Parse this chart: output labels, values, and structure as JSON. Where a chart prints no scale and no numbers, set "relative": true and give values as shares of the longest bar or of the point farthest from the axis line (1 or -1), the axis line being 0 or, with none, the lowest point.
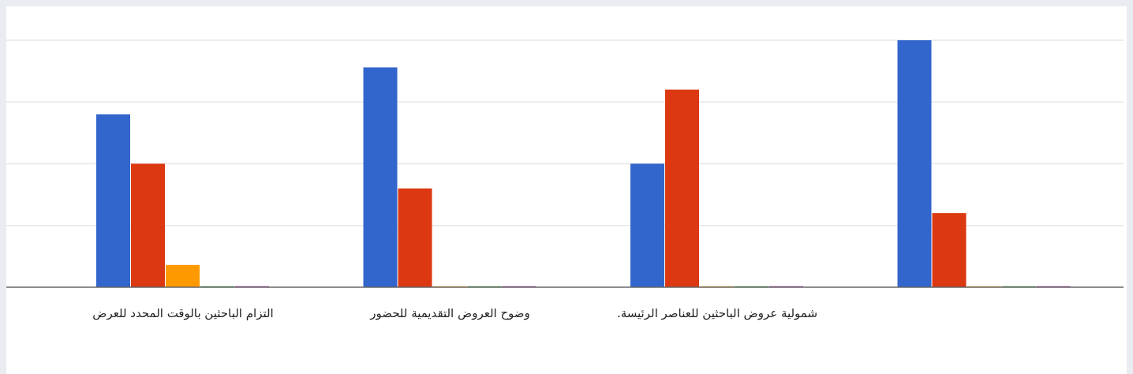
{
  "chart_data": {
    "type": "bar",
    "relative": true,
    "grid": "y",
    "categories": [
      "التزام الباحثين بالوقت المحدد للعرض",
      "وضوح العروض التقديمية للحضور",
      "شمولية عروض الباحثين للعناصر الرئيسة.",
      null
    ],
    "series": [
      {
        "color": "#3366cc",
        "values": [
          0.7,
          0.89,
          0.5,
          1
        ]
      },
      {
        "color": "#dc3912",
        "values": [
          0.5,
          0.4,
          0.8,
          0.3
        ]
      },
      {
        "color": "#ff9900",
        "values": [
          0.09,
          0,
          0,
          0
        ]
      },
      {
        "color": "#109618",
        "values": [
          0,
          0,
          0,
          0
        ]
      },
      {
        "color": "#990099",
        "values": [
          0,
          0,
          0,
          0
        ]
      }
    ]
  }
}
